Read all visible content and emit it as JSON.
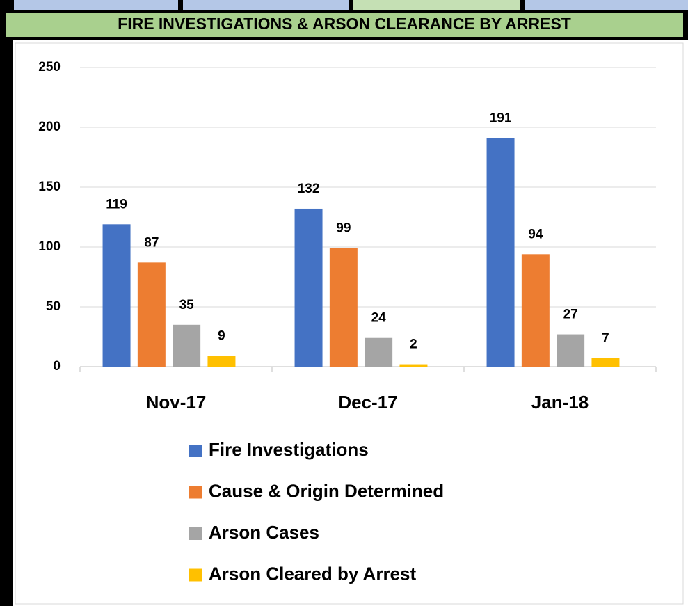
{
  "chart_data": {
    "type": "bar",
    "title": "FIRE INVESTIGATIONS & ARSON CLEARANCE BY ARREST",
    "categories": [
      "Nov-17",
      "Dec-17",
      "Jan-18"
    ],
    "series": [
      {
        "name": "Fire Investigations",
        "color": "#4472c4",
        "values": [
          119,
          132,
          191
        ]
      },
      {
        "name": "Cause & Origin Determined",
        "color": "#ed7d31",
        "values": [
          87,
          99,
          94
        ]
      },
      {
        "name": "Arson Cases",
        "color": "#a5a5a5",
        "values": [
          35,
          24,
          27
        ]
      },
      {
        "name": "Arson Cleared by Arrest",
        "color": "#ffc000",
        "values": [
          9,
          2,
          7
        ]
      }
    ],
    "ylim": [
      0,
      250
    ],
    "yticks": [
      0,
      50,
      100,
      150,
      200,
      250
    ],
    "grid": true,
    "data_labels": true
  }
}
